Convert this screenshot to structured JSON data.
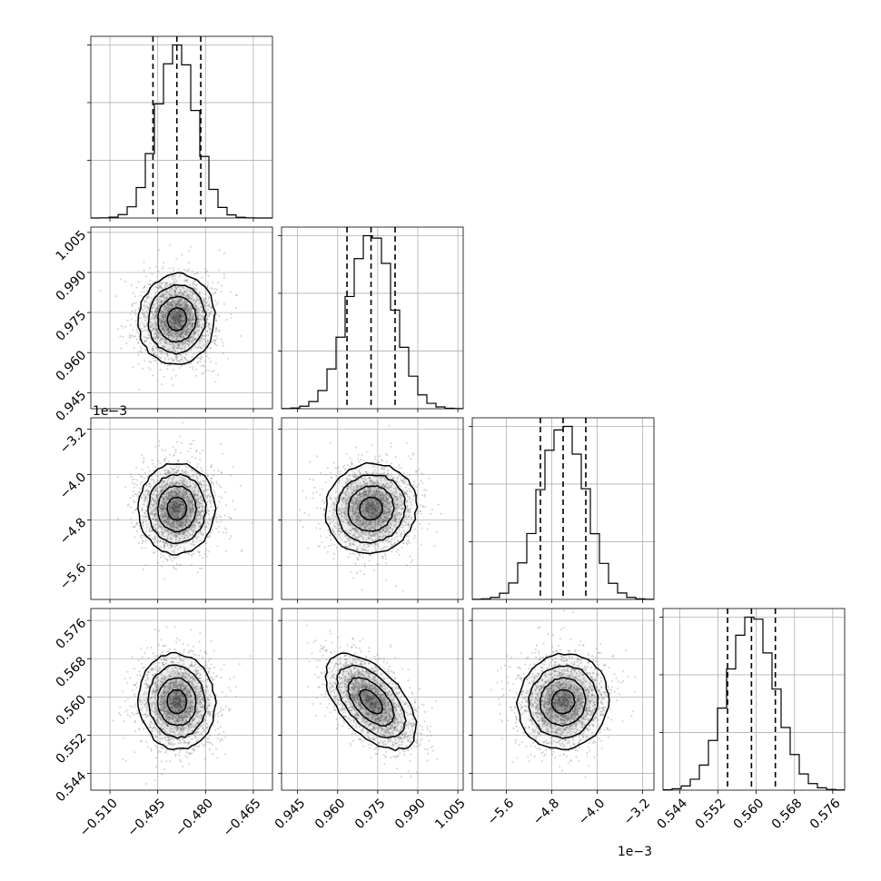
{
  "chart_data": {
    "type": "corner",
    "n_params": 4,
    "parameters": [
      {
        "index": 0,
        "range": [
          -0.516,
          -0.459
        ],
        "ticks": [
          -0.51,
          -0.495,
          -0.48,
          -0.465
        ],
        "tick_labels": [
          "−0.510",
          "−0.495",
          "−0.480",
          "−0.465"
        ],
        "offset_text": "",
        "mean": -0.489,
        "sd": 0.006,
        "quantiles": [
          -0.4965,
          -0.489,
          -0.4815
        ]
      },
      {
        "index": 1,
        "range": [
          0.939,
          1.007
        ],
        "ticks": [
          0.945,
          0.96,
          0.975,
          0.99,
          1.005
        ],
        "tick_labels": [
          "0.945",
          "0.960",
          "0.975",
          "0.990",
          "1.005"
        ],
        "offset_text": "",
        "mean": 0.9725,
        "sd": 0.0085,
        "quantiles": [
          0.9635,
          0.9725,
          0.9815
        ]
      },
      {
        "index": 2,
        "range": [
          -6.2,
          -3.0
        ],
        "ticks": [
          -5.6,
          -4.8,
          -4.0,
          -3.2
        ],
        "tick_labels": [
          "−5.6",
          "−4.8",
          "−4.0",
          "−3.2"
        ],
        "offset_text": "1e−3",
        "mean": -4.6,
        "sd": 0.4,
        "quantiles": [
          -5.0,
          -4.6,
          -4.2
        ]
      },
      {
        "index": 3,
        "range": [
          0.5405,
          0.5785
        ],
        "ticks": [
          0.544,
          0.552,
          0.56,
          0.568,
          0.576
        ],
        "tick_labels": [
          "0.544",
          "0.552",
          "0.560",
          "0.568",
          "0.576"
        ],
        "offset_text": "",
        "mean": 0.559,
        "sd": 0.005,
        "quantiles": [
          0.554,
          0.559,
          0.564
        ]
      }
    ],
    "correlations": {
      "1_0": 0.05,
      "2_0": 0.0,
      "2_1": 0.05,
      "3_0": -0.05,
      "3_1": -0.55,
      "3_2": 0.05
    },
    "quantile_levels": [
      0.16,
      0.5,
      0.84
    ],
    "contour_levels_sigma": [
      0.5,
      1.0,
      1.5,
      2.0
    ],
    "histogram_bins": 20,
    "grid": true,
    "colors": {
      "line": "#000000",
      "scatter": "#7a7a7a",
      "grid": "#b0b0b0"
    }
  }
}
